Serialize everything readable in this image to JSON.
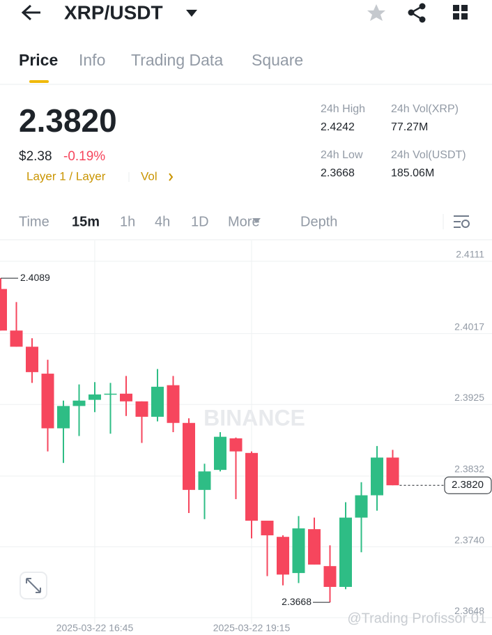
{
  "header": {
    "pair": "XRP/USDT"
  },
  "tabs": [
    "Price",
    "Info",
    "Trading Data",
    "Square"
  ],
  "price": {
    "last": "2.3820",
    "usd": "$2.38",
    "change": "-0.19%",
    "tags": [
      "Layer 1 / Layer",
      "Vol"
    ]
  },
  "stats": [
    {
      "label": "24h High",
      "value": "2.4242"
    },
    {
      "label": "24h Vol(XRP)",
      "value": "77.27M"
    },
    {
      "label": "24h Low",
      "value": "2.3668"
    },
    {
      "label": "24h Vol(USDT)",
      "value": "185.06M"
    }
  ],
  "intervals": [
    "Time",
    "15m",
    "1h",
    "4h",
    "1D",
    "More",
    "Depth"
  ],
  "chart_data": {
    "type": "candlestick",
    "categories": [
      null,
      null,
      null,
      null,
      null,
      null,
      "2025-03-22 16:45",
      null,
      null,
      null,
      null,
      null,
      null,
      null,
      null,
      null,
      "2025-03-22 19:15",
      null,
      null,
      null,
      null,
      null,
      null,
      null,
      null,
      null
    ],
    "series": [
      {
        "open": [
          2.4075,
          2.4021,
          2.4,
          2.3965,
          2.3894,
          2.3923,
          2.3931,
          2.3938,
          2.3939,
          2.3929,
          2.3909,
          2.395,
          2.3901,
          2.3814,
          2.384,
          2.3881,
          2.3862,
          2.3774,
          2.3753,
          2.3706,
          2.3763,
          2.3715,
          2.3688,
          2.3778,
          2.3807,
          2.3856
        ],
        "high": [
          2.4089,
          2.4058,
          2.4011,
          2.3983,
          2.393,
          2.3951,
          2.3954,
          2.3953,
          2.3962,
          2.3929,
          2.3971,
          2.3962,
          2.3907,
          2.3848,
          2.3889,
          2.3882,
          2.3864,
          2.3774,
          2.3755,
          2.378,
          2.3778,
          2.3742,
          2.3798,
          2.3824,
          2.3871,
          2.3866
        ],
        "low": [
          2.4021,
          2.4,
          2.3953,
          2.3864,
          2.3849,
          2.3884,
          2.3915,
          2.3887,
          2.391,
          2.3875,
          2.3903,
          2.3889,
          2.3784,
          2.3776,
          2.3838,
          2.3802,
          2.3751,
          2.3702,
          2.369,
          2.3693,
          2.3717,
          2.3668,
          2.3685,
          2.3733,
          2.3787,
          2.382
        ],
        "close": [
          2.4021,
          2.4,
          2.3967,
          2.3894,
          2.3923,
          2.393,
          2.3938,
          2.3939,
          2.3929,
          2.3909,
          2.3948,
          2.3901,
          2.3814,
          2.3838,
          2.3883,
          2.3864,
          2.3774,
          2.3755,
          2.3704,
          2.3764,
          2.3717,
          2.3688,
          2.3778,
          2.3807,
          2.3856,
          2.382
        ]
      }
    ],
    "up_color": "#2ebd85",
    "down_color": "#f6465d",
    "ylim": [
      2.364,
      2.4138
    ],
    "yticks": [
      2.4111,
      2.4017,
      2.3925,
      2.3832,
      {
        "value": 2.374,
        "label": "2.3740"
      },
      2.3648
    ],
    "grid": true,
    "high_marker": 2.4089,
    "low_marker": 2.3668,
    "last_price": {
      "value": 2.382,
      "label": "2.3820"
    },
    "watermark": "BINANCE"
  },
  "credit": "@Trading Profissor 01"
}
